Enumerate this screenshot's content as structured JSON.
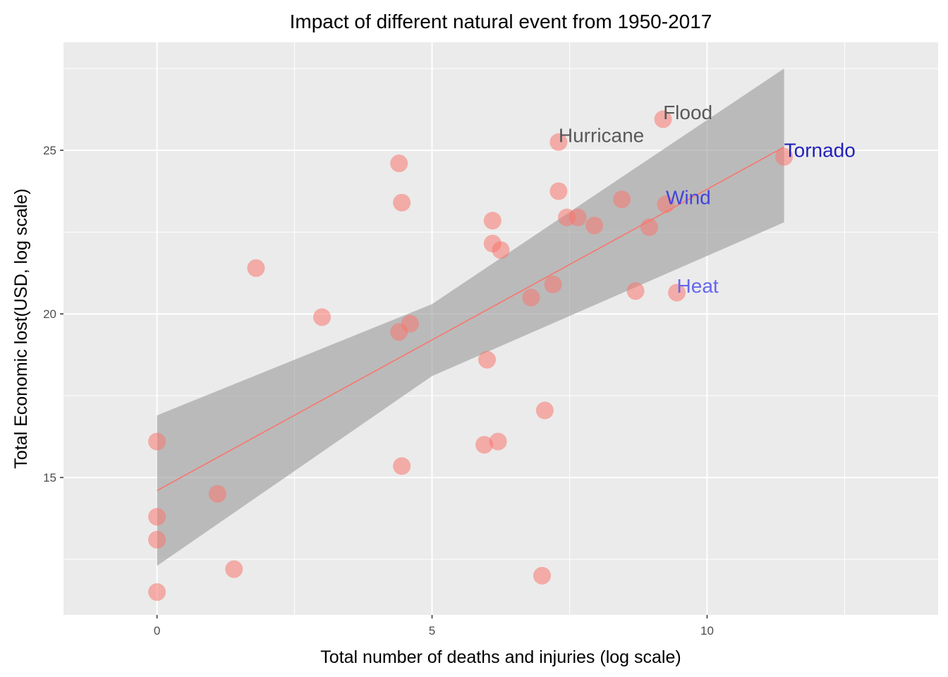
{
  "chart_data": {
    "type": "scatter",
    "title": "Impact of different natural event from 1950-2017",
    "xlabel": "Total number of deaths and injuries (log scale)",
    "ylabel": "Total Economic lost(USD, log scale)",
    "xlim": [
      -1.7,
      14.2
    ],
    "ylim": [
      10.8,
      28.3
    ],
    "x_ticks": [
      0,
      5,
      10
    ],
    "y_ticks": [
      15,
      20,
      25
    ],
    "grid": true,
    "colors": {
      "panel_background": "#ebebeb",
      "grid": "#ffffff",
      "point": "#f8766d",
      "trend_line": "#f8766d",
      "confidence_band": "#999999"
    },
    "points": [
      {
        "x": 0.0,
        "y": 16.1
      },
      {
        "x": 0.0,
        "y": 13.8
      },
      {
        "x": 0.0,
        "y": 13.1
      },
      {
        "x": 0.0,
        "y": 11.5
      },
      {
        "x": 1.1,
        "y": 14.5
      },
      {
        "x": 1.4,
        "y": 12.2
      },
      {
        "x": 1.8,
        "y": 21.4
      },
      {
        "x": 3.0,
        "y": 19.9
      },
      {
        "x": 4.4,
        "y": 24.6
      },
      {
        "x": 4.45,
        "y": 23.4
      },
      {
        "x": 4.4,
        "y": 19.45
      },
      {
        "x": 4.6,
        "y": 19.7
      },
      {
        "x": 4.45,
        "y": 15.35
      },
      {
        "x": 6.0,
        "y": 18.6
      },
      {
        "x": 5.95,
        "y": 16.0
      },
      {
        "x": 6.2,
        "y": 16.1
      },
      {
        "x": 6.1,
        "y": 22.85
      },
      {
        "x": 6.1,
        "y": 22.15
      },
      {
        "x": 6.25,
        "y": 21.95
      },
      {
        "x": 6.8,
        "y": 20.5
      },
      {
        "x": 7.2,
        "y": 20.9
      },
      {
        "x": 7.05,
        "y": 17.05
      },
      {
        "x": 7.0,
        "y": 12.0
      },
      {
        "x": 7.3,
        "y": 25.25
      },
      {
        "x": 7.3,
        "y": 23.75
      },
      {
        "x": 7.45,
        "y": 22.95
      },
      {
        "x": 7.65,
        "y": 22.95
      },
      {
        "x": 7.95,
        "y": 22.7
      },
      {
        "x": 8.45,
        "y": 23.5
      },
      {
        "x": 8.7,
        "y": 20.7
      },
      {
        "x": 8.95,
        "y": 22.65
      },
      {
        "x": 9.2,
        "y": 25.95
      },
      {
        "x": 9.25,
        "y": 23.35
      },
      {
        "x": 9.45,
        "y": 20.65
      },
      {
        "x": 11.4,
        "y": 24.8
      }
    ],
    "annotations": [
      {
        "text": "Flood",
        "x": 9.2,
        "y": 25.95,
        "color": "#595959"
      },
      {
        "text": "Hurricane",
        "x": 7.3,
        "y": 25.25,
        "color": "#595959"
      },
      {
        "text": "Tornado",
        "x": 11.4,
        "y": 24.8,
        "color": "#2222bb"
      },
      {
        "text": "Wind",
        "x": 9.25,
        "y": 23.35,
        "color": "#4444dd"
      },
      {
        "text": "Heat",
        "x": 9.45,
        "y": 20.65,
        "color": "#6666ee"
      }
    ],
    "trend": {
      "x": [
        0,
        11.4
      ],
      "y": [
        14.6,
        25.1
      ]
    },
    "confidence_band": {
      "x": [
        0,
        5.0,
        11.4
      ],
      "upper": [
        16.9,
        20.3,
        27.5
      ],
      "lower": [
        12.3,
        18.1,
        22.8
      ]
    }
  }
}
